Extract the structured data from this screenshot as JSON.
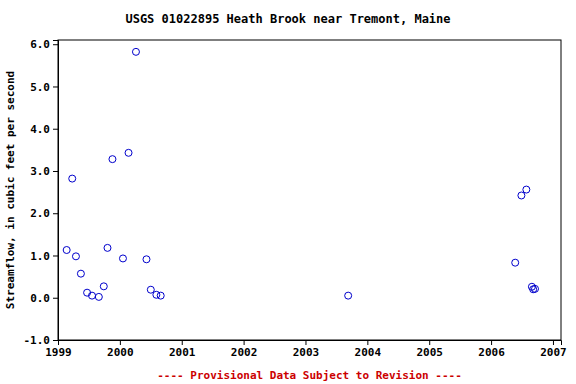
{
  "chart_data": {
    "type": "scatter",
    "title": "USGS 01022895 Heath Brook near Tremont, Maine",
    "ylabel": "Streamflow, in cubic feet per second",
    "note": "---- Provisional Data Subject to Revision ----",
    "x": [
      1999.14,
      1999.23,
      1999.29,
      1999.37,
      1999.47,
      1999.55,
      1999.66,
      1999.74,
      1999.8,
      1999.88,
      2000.05,
      2000.14,
      2000.26,
      2000.43,
      2000.5,
      2000.59,
      2000.66,
      2003.69,
      2006.39,
      2006.49,
      2006.57,
      2006.66,
      2006.68,
      2006.71
    ],
    "y": [
      1.13,
      2.82,
      0.98,
      0.57,
      0.12,
      0.05,
      0.02,
      0.27,
      1.18,
      3.28,
      0.93,
      3.43,
      5.82,
      0.91,
      0.19,
      0.07,
      0.05,
      0.05,
      0.83,
      2.42,
      2.56,
      0.26,
      0.2,
      0.21
    ],
    "color": "#0000cc",
    "marker": "circle",
    "grid": false,
    "xlim": [
      1999,
      2007.13
    ],
    "xticks": [
      1999,
      2000,
      2001,
      2002,
      2003,
      2004,
      2005,
      2006,
      2007
    ],
    "ylim": [
      -1,
      6.1
    ],
    "yticks": [
      {
        "value": -1,
        "label": "-1.0"
      },
      {
        "value": 0,
        "label": "0.0"
      },
      {
        "value": 1,
        "label": "1.0"
      },
      {
        "value": 2,
        "label": "2.0"
      },
      {
        "value": 3,
        "label": "3.0"
      },
      {
        "value": 4,
        "label": "4.0"
      },
      {
        "value": 5,
        "label": "5.0"
      },
      {
        "value": 6,
        "label": "6.0"
      }
    ]
  }
}
